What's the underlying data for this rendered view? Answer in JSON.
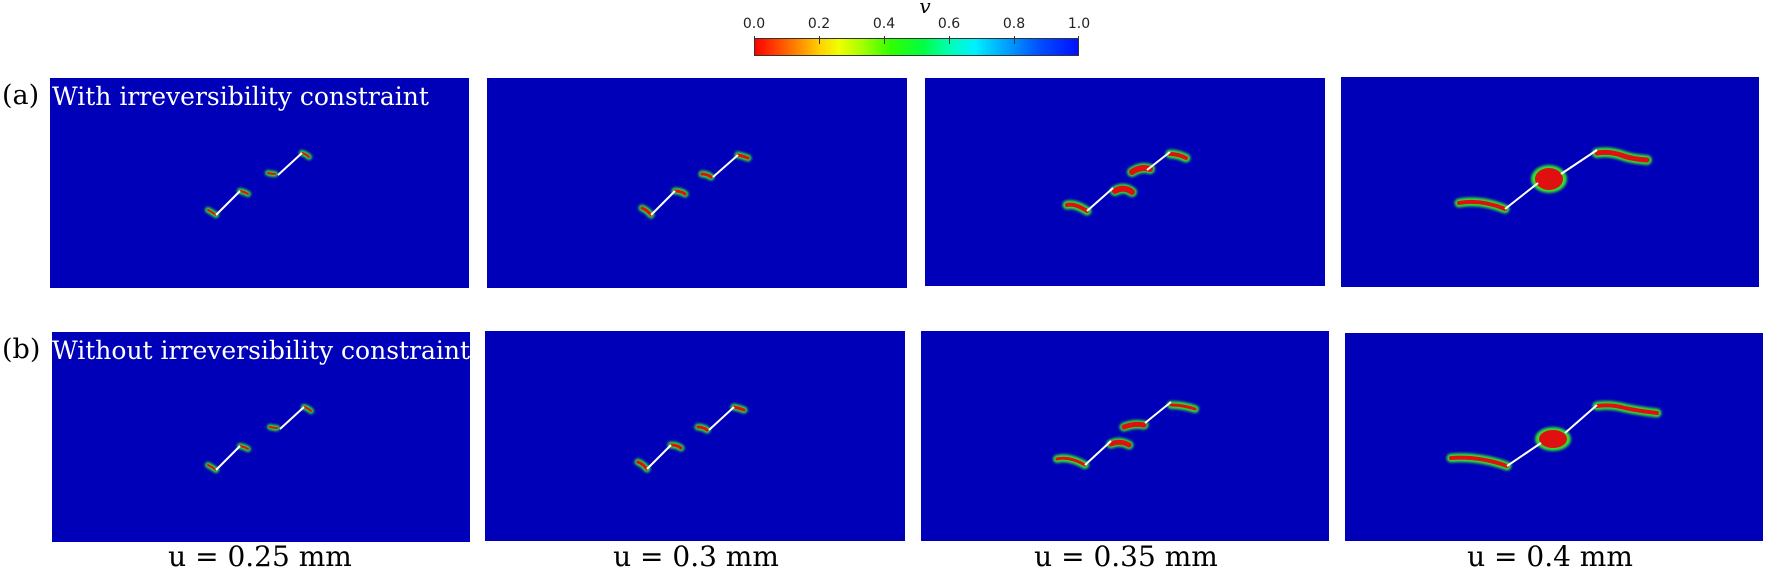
{
  "colorbar": {
    "title": "v",
    "ticks": [
      "0.0",
      "0.2",
      "0.4",
      "0.6",
      "0.8",
      "1.0"
    ]
  },
  "rows": [
    {
      "letter": "(a)",
      "title": "With irreversibility constraint"
    },
    {
      "letter": "(b)",
      "title": "Without irreversibility constraint"
    }
  ],
  "columns": [
    {
      "label": "u = 0.25 mm"
    },
    {
      "label": "u = 0.3 mm"
    },
    {
      "label": "u = 0.35 mm"
    },
    {
      "label": "u = 0.4 mm"
    }
  ],
  "colors": {
    "background_field": "#0000b8",
    "crack_core": "#e01010",
    "crack_halo": "#30e030",
    "notch": "#ffffff"
  }
}
